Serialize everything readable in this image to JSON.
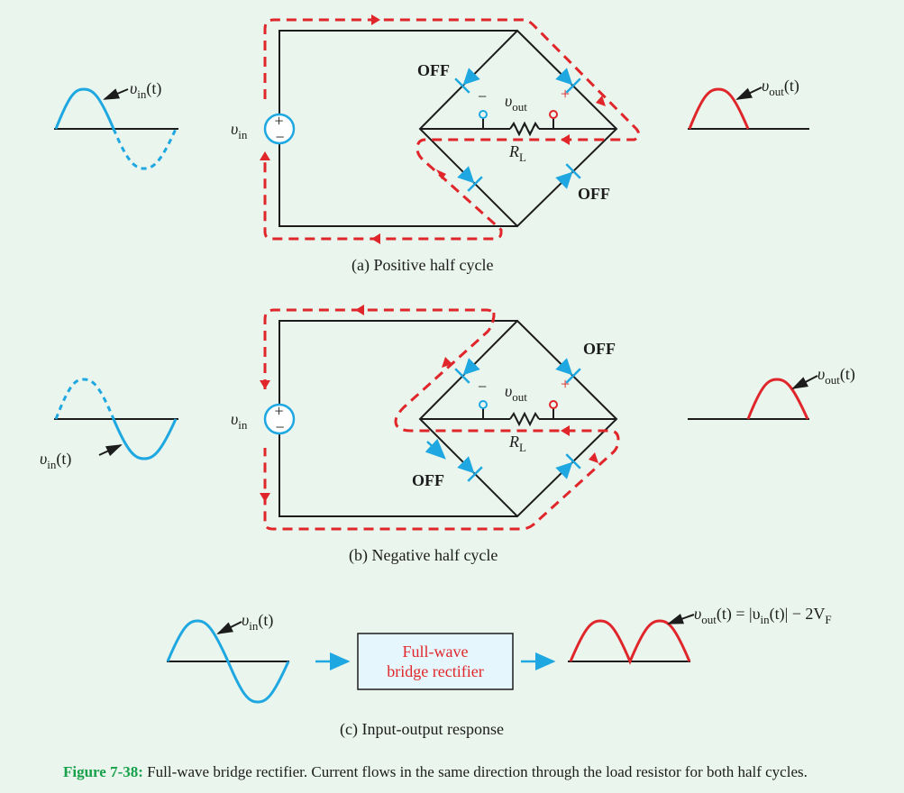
{
  "panel_a": {
    "caption": "(a) Positive half cycle",
    "input_label_main": "υ",
    "input_label_sub": "in",
    "input_label_tail": "(t)",
    "output_label_main": "υ",
    "output_label_sub": "out",
    "output_label_tail": "(t)",
    "source_main": "υ",
    "source_sub": "in",
    "vout_main": "υ",
    "vout_sub": "out",
    "rl_main": "R",
    "rl_sub": "L",
    "off_top": "OFF",
    "off_bottom": "OFF",
    "plus": "+",
    "minus": "−"
  },
  "panel_b": {
    "caption": "(b) Negative half cycle",
    "input_label_main": "υ",
    "input_label_sub": "in",
    "input_label_tail": "(t)",
    "output_label_main": "υ",
    "output_label_sub": "out",
    "output_label_tail": "(t)",
    "source_main": "υ",
    "source_sub": "in",
    "vout_main": "υ",
    "vout_sub": "out",
    "rl_main": "R",
    "rl_sub": "L",
    "off_top": "OFF",
    "off_bottom": "OFF",
    "plus": "+",
    "minus": "−"
  },
  "panel_c": {
    "caption": "(c) Input-output response",
    "input_label_main": "υ",
    "input_label_sub": "in",
    "input_label_tail": "(t)",
    "block_line1": "Full-wave",
    "block_line2": "bridge rectifier",
    "eq_v": "υ",
    "eq_out": "out",
    "eq_mid": "(t) = |υ",
    "eq_in": "in",
    "eq_tail": "(t)| − 2V",
    "eq_f": "F"
  },
  "figure": {
    "label": "Figure 7-38:",
    "text": " Full-wave bridge rectifier. Current flows in the same direction through the load resistor for both half cycles."
  },
  "colors": {
    "current": "#e0262a",
    "diode": "#1ea7e1",
    "wire": "#1c1c1c",
    "background": "#e9f5ed"
  }
}
